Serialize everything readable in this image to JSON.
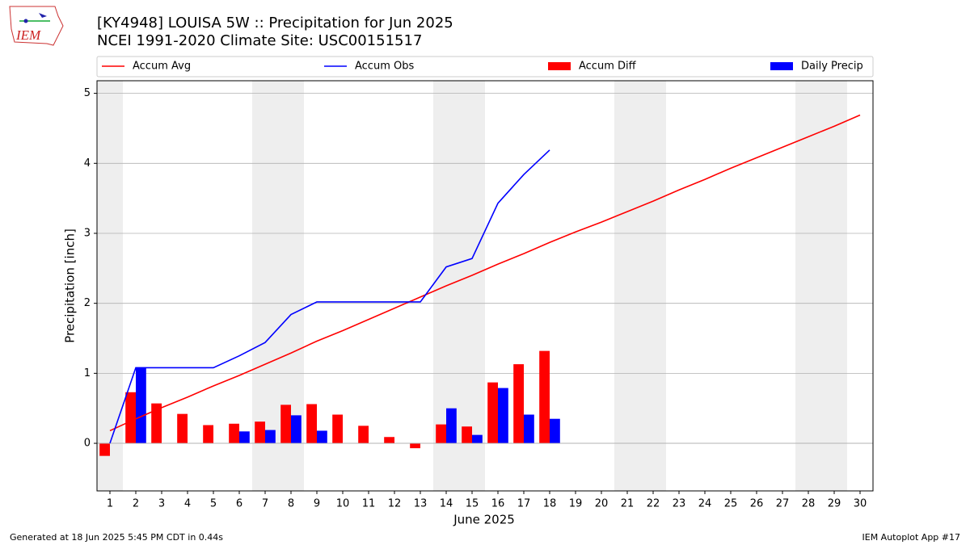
{
  "header": {
    "logo_text": "IEM"
  },
  "chart_data": {
    "type": "line-bar",
    "title": "[KY4948] LOUISA 5W :: Precipitation for Jun 2025",
    "subtitle": "NCEI 1991-2020 Climate Site: USC00151517",
    "x_label": "June 2025",
    "y_label": "Precipitation [inch]",
    "x": [
      1,
      2,
      3,
      4,
      5,
      6,
      7,
      8,
      9,
      10,
      11,
      12,
      13,
      14,
      15,
      16,
      17,
      18,
      19,
      20,
      21,
      22,
      23,
      24,
      25,
      26,
      27,
      28,
      29,
      30
    ],
    "xlim": [
      0.5,
      30.5
    ],
    "xticks": [
      1,
      2,
      3,
      4,
      5,
      6,
      7,
      8,
      9,
      10,
      11,
      12,
      13,
      14,
      15,
      16,
      17,
      18,
      19,
      20,
      21,
      22,
      23,
      24,
      25,
      26,
      27,
      28,
      29,
      30
    ],
    "ylim": [
      -0.68,
      5.18
    ],
    "yticks": [
      0,
      1,
      2,
      3,
      4,
      5
    ],
    "grid": true,
    "weekend_days": [
      1,
      7,
      8,
      14,
      15,
      21,
      22,
      28,
      29
    ],
    "series": [
      {
        "name": "Accum Avg",
        "color": "#ff0000",
        "kind": "line",
        "values": [
          0.18,
          0.35,
          0.51,
          0.66,
          0.82,
          0.97,
          1.13,
          1.29,
          1.46,
          1.61,
          1.77,
          1.93,
          2.09,
          2.25,
          2.4,
          2.56,
          2.71,
          2.87,
          3.02,
          3.16,
          3.31,
          3.46,
          3.62,
          3.77,
          3.93,
          4.08,
          4.23,
          4.38,
          4.53,
          4.69
        ]
      },
      {
        "name": "Accum Obs",
        "color": "#0000ff",
        "kind": "line",
        "values": [
          0.0,
          1.08,
          1.08,
          1.08,
          1.08,
          1.25,
          1.44,
          1.84,
          2.02,
          2.02,
          2.02,
          2.02,
          2.02,
          2.52,
          2.64,
          3.43,
          3.84,
          4.19,
          null,
          null,
          null,
          null,
          null,
          null,
          null,
          null,
          null,
          null,
          null,
          null
        ]
      },
      {
        "name": "Accum Diff",
        "color": "#ff0000",
        "kind": "bar",
        "values": [
          -0.18,
          0.73,
          0.57,
          0.42,
          0.26,
          0.28,
          0.31,
          0.55,
          0.56,
          0.41,
          0.25,
          0.09,
          -0.07,
          0.27,
          0.24,
          0.87,
          1.13,
          1.32,
          null,
          null,
          null,
          null,
          null,
          null,
          null,
          null,
          null,
          null,
          null,
          null
        ]
      },
      {
        "name": "Daily Precip",
        "color": "#0000ff",
        "kind": "bar",
        "values": [
          0,
          1.08,
          0,
          0,
          0,
          0.17,
          0.19,
          0.4,
          0.18,
          0,
          0,
          0,
          0,
          0.5,
          0.12,
          0.79,
          0.41,
          0.35,
          null,
          null,
          null,
          null,
          null,
          null,
          null,
          null,
          null,
          null,
          null,
          null
        ]
      }
    ]
  },
  "footer": {
    "left": "Generated at 18 Jun 2025 5:45 PM CDT in 0.44s",
    "right": "IEM Autoplot App #17"
  }
}
